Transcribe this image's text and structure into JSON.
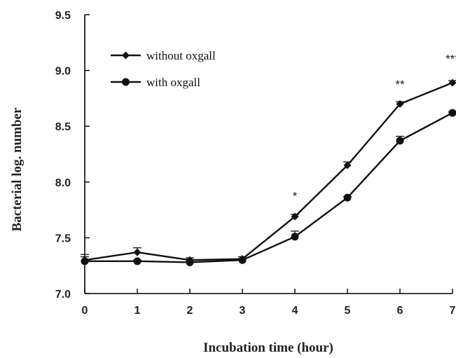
{
  "chart_data": {
    "type": "line",
    "title": "",
    "xlabel": "Incubation time (hour)",
    "ylabel": "Bacterial log. number",
    "xlim": [
      0,
      7
    ],
    "ylim": [
      7.0,
      9.5
    ],
    "x_ticks": [
      "0",
      "1",
      "2",
      "3",
      "4",
      "5",
      "6",
      "7"
    ],
    "y_ticks": [
      "7.0",
      "7.5",
      "8.0",
      "8.5",
      "9.0",
      "9.5"
    ],
    "x": [
      0,
      1,
      2,
      3,
      4,
      5,
      6,
      7
    ],
    "grid": false,
    "legend_position": "top-left",
    "series": [
      {
        "name": "without oxgall",
        "marker": "diamond",
        "values": [
          7.3,
          7.37,
          7.3,
          7.31,
          7.69,
          8.15,
          8.7,
          8.89
        ],
        "errors": [
          0.05,
          0.04,
          0.02,
          0.02,
          0.02,
          0.03,
          0.02,
          0.02
        ]
      },
      {
        "name": "with oxgall",
        "marker": "circle",
        "values": [
          7.29,
          7.29,
          7.28,
          7.3,
          7.51,
          7.86,
          8.37,
          8.62
        ],
        "errors": [
          0.04,
          0.01,
          0.02,
          0.01,
          0.05,
          0.01,
          0.04,
          0.01
        ]
      }
    ],
    "annotations": [
      {
        "x": 4,
        "y": 7.84,
        "text": "*"
      },
      {
        "x": 6,
        "y": 8.84,
        "text": "**"
      },
      {
        "x": 7,
        "y": 9.07,
        "text": "***"
      }
    ],
    "colors": {
      "line": "#111111",
      "axis": "#000000"
    }
  }
}
